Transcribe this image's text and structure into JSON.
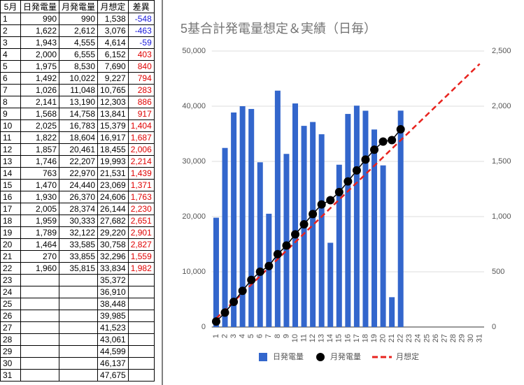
{
  "table": {
    "headers": [
      "5月",
      "日発電量",
      "月発電量",
      "月想定",
      "差異"
    ],
    "rows": [
      [
        "1",
        "990",
        "990",
        "1,538",
        "-548"
      ],
      [
        "2",
        "1,622",
        "2,612",
        "3,076",
        "-463"
      ],
      [
        "3",
        "1,943",
        "4,555",
        "4,614",
        "-59"
      ],
      [
        "4",
        "2,000",
        "6,555",
        "6,152",
        "403"
      ],
      [
        "5",
        "1,975",
        "8,530",
        "7,690",
        "840"
      ],
      [
        "6",
        "1,492",
        "10,022",
        "9,227",
        "794"
      ],
      [
        "7",
        "1,026",
        "11,048",
        "10,765",
        "283"
      ],
      [
        "8",
        "2,141",
        "13,190",
        "12,303",
        "886"
      ],
      [
        "9",
        "1,568",
        "14,758",
        "13,841",
        "917"
      ],
      [
        "10",
        "2,025",
        "16,783",
        "15,379",
        "1,404"
      ],
      [
        "11",
        "1,822",
        "18,604",
        "16,917",
        "1,687"
      ],
      [
        "12",
        "1,857",
        "20,461",
        "18,455",
        "2,006"
      ],
      [
        "13",
        "1,746",
        "22,207",
        "19,993",
        "2,214"
      ],
      [
        "14",
        "763",
        "22,970",
        "21,531",
        "1,439"
      ],
      [
        "15",
        "1,470",
        "24,440",
        "23,069",
        "1,371"
      ],
      [
        "16",
        "1,930",
        "26,370",
        "24,606",
        "1,763"
      ],
      [
        "17",
        "2,005",
        "28,374",
        "26,144",
        "2,230"
      ],
      [
        "18",
        "1,959",
        "30,333",
        "27,682",
        "2,651"
      ],
      [
        "19",
        "1,789",
        "32,122",
        "29,220",
        "2,901"
      ],
      [
        "20",
        "1,464",
        "33,585",
        "30,758",
        "2,827"
      ],
      [
        "21",
        "270",
        "33,855",
        "32,296",
        "1,559"
      ],
      [
        "22",
        "1,960",
        "35,815",
        "33,834",
        "1,982"
      ],
      [
        "23",
        null,
        null,
        "35,372",
        null
      ],
      [
        "24",
        null,
        null,
        "36,910",
        null
      ],
      [
        "25",
        null,
        null,
        "38,448",
        null
      ],
      [
        "26",
        null,
        null,
        "39,985",
        null
      ],
      [
        "27",
        null,
        null,
        "41,523",
        null
      ],
      [
        "28",
        null,
        null,
        "43,061",
        null
      ],
      [
        "29",
        null,
        null,
        "44,599",
        null
      ],
      [
        "30",
        null,
        null,
        "46,137",
        null
      ],
      [
        "31",
        null,
        null,
        "47,675",
        null
      ]
    ],
    "negative_color": "#1a1adb",
    "positive_color": "#e00000"
  },
  "chart_data": {
    "type": "bar_line",
    "title": "5基合計発電量想定＆実績（日毎）",
    "categories": [
      "1",
      "2",
      "3",
      "4",
      "5",
      "6",
      "7",
      "8",
      "9",
      "10",
      "11",
      "12",
      "13",
      "14",
      "15",
      "16",
      "17",
      "18",
      "19",
      "20",
      "21",
      "22",
      "23",
      "24",
      "25",
      "26",
      "27",
      "28",
      "29",
      "30",
      "31"
    ],
    "series": [
      {
        "name": "日発電量",
        "type": "bar",
        "axis": "y2",
        "color": "#3366cc",
        "values": [
          990,
          1622,
          1943,
          2000,
          1975,
          1492,
          1026,
          2141,
          1568,
          2025,
          1822,
          1857,
          1746,
          763,
          1470,
          1930,
          2005,
          1959,
          1789,
          1464,
          270,
          1960,
          null,
          null,
          null,
          null,
          null,
          null,
          null,
          null,
          null
        ]
      },
      {
        "name": "月発電量",
        "type": "line_dots",
        "color": "#000000",
        "values": [
          990,
          2612,
          4555,
          6555,
          8530,
          10022,
          11048,
          13190,
          14758,
          16783,
          18604,
          20461,
          22207,
          22970,
          24440,
          26370,
          28374,
          30333,
          32122,
          33585,
          33855,
          35815,
          null,
          null,
          null,
          null,
          null,
          null,
          null,
          null,
          null
        ]
      },
      {
        "name": "月想定",
        "type": "dashed_line",
        "color": "#e8231e",
        "values": [
          1538,
          3076,
          4614,
          6152,
          7690,
          9227,
          10765,
          12303,
          13841,
          15379,
          16917,
          18455,
          19993,
          21531,
          23069,
          24606,
          26144,
          27682,
          29220,
          30758,
          32296,
          33834,
          35372,
          36910,
          38448,
          39985,
          41523,
          43061,
          44599,
          46137,
          47675
        ]
      }
    ],
    "ylim": [
      0,
      50000
    ],
    "yticks": [
      0,
      {
        "value": 10000,
        "label": "10,000"
      },
      {
        "value": 20000,
        "label": "20,000"
      },
      {
        "value": 30000,
        "label": "30,000"
      },
      {
        "value": 40000,
        "label": "40,000"
      },
      {
        "value": 50000,
        "label": "50,000"
      }
    ],
    "y2lim": [
      0,
      2500
    ],
    "y2ticks": [
      0,
      500,
      {
        "value": 1000,
        "label": "1,000"
      },
      {
        "value": 1500,
        "label": "1,500"
      },
      {
        "value": 2000,
        "label": "2,000"
      },
      {
        "value": 2500,
        "label": "2,500"
      }
    ],
    "grid": true,
    "legend": "bottom"
  }
}
